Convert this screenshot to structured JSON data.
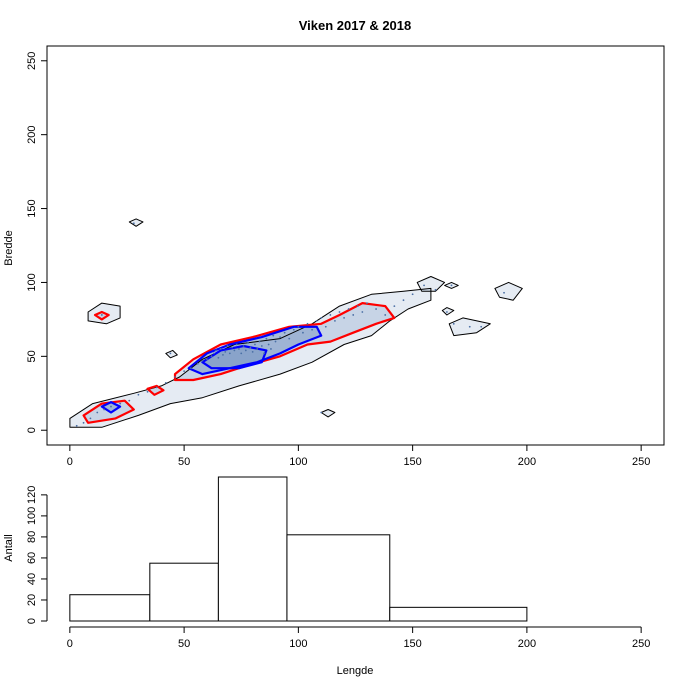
{
  "chart_data": [
    {
      "type": "scatter",
      "title": "Viken 2017 & 2018",
      "xlabel": "",
      "ylabel": "Bredde",
      "xlim": [
        -10,
        260
      ],
      "ylim": [
        -10,
        260
      ],
      "x_ticks": [
        "0",
        "50",
        "100",
        "150",
        "200",
        "250"
      ],
      "y_ticks": [
        "0",
        "50",
        "100",
        "150",
        "200",
        "250"
      ],
      "grid": false,
      "legend": "none",
      "colors": {
        "density_fill": "#6f8fbf",
        "contour_outer": "#000000",
        "contour_mid": "#ff0000",
        "contour_inner": "#0000ff",
        "points": "#4a6fa5"
      },
      "contours": [
        {
          "level": "outer",
          "color": "#000000",
          "polygons": [
            [
              [
                0,
                8
              ],
              [
                10,
                18
              ],
              [
                28,
                25
              ],
              [
                40,
                30
              ],
              [
                48,
                36
              ],
              [
                58,
                48
              ],
              [
                72,
                58
              ],
              [
                92,
                62
              ],
              [
                106,
                72
              ],
              [
                118,
                84
              ],
              [
                132,
                92
              ],
              [
                146,
                94
              ],
              [
                158,
                96
              ],
              [
                158,
                88
              ],
              [
                148,
                82
              ],
              [
                140,
                74
              ],
              [
                132,
                64
              ],
              [
                120,
                58
              ],
              [
                106,
                46
              ],
              [
                92,
                38
              ],
              [
                74,
                30
              ],
              [
                58,
                22
              ],
              [
                44,
                18
              ],
              [
                30,
                10
              ],
              [
                14,
                2
              ],
              [
                0,
                2
              ]
            ],
            [
              [
                8,
                80
              ],
              [
                14,
                86
              ],
              [
                22,
                84
              ],
              [
                22,
                76
              ],
              [
                16,
                72
              ],
              [
                8,
                74
              ]
            ],
            [
              [
                26,
                141
              ],
              [
                29,
                143
              ],
              [
                32,
                141
              ],
              [
                29,
                138
              ]
            ],
            [
              [
                42,
                52
              ],
              [
                45,
                54
              ],
              [
                47,
                51
              ],
              [
                44,
                49
              ]
            ],
            [
              [
                110,
                12
              ],
              [
                113,
                14
              ],
              [
                116,
                12
              ],
              [
                113,
                9
              ]
            ],
            [
              [
                152,
                100
              ],
              [
                158,
                104
              ],
              [
                164,
                100
              ],
              [
                160,
                94
              ],
              [
                154,
                94
              ]
            ],
            [
              [
                164,
                98
              ],
              [
                167,
                100
              ],
              [
                170,
                98
              ],
              [
                167,
                96
              ]
            ],
            [
              [
                163,
                81
              ],
              [
                165,
                83
              ],
              [
                168,
                81
              ],
              [
                165,
                78
              ]
            ],
            [
              [
                166,
                72
              ],
              [
                172,
                76
              ],
              [
                184,
                72
              ],
              [
                178,
                66
              ],
              [
                168,
                64
              ]
            ],
            [
              [
                186,
                96
              ],
              [
                192,
                100
              ],
              [
                198,
                96
              ],
              [
                194,
                88
              ],
              [
                188,
                90
              ]
            ]
          ]
        },
        {
          "level": "mid",
          "color": "#ff0000",
          "polygons": [
            [
              [
                6,
                10
              ],
              [
                14,
                18
              ],
              [
                24,
                20
              ],
              [
                28,
                14
              ],
              [
                20,
                8
              ],
              [
                8,
                5
              ]
            ],
            [
              [
                34,
                28
              ],
              [
                38,
                30
              ],
              [
                41,
                27
              ],
              [
                37,
                24
              ]
            ],
            [
              [
                11,
                78
              ],
              [
                14,
                80
              ],
              [
                17,
                78
              ],
              [
                14,
                75
              ]
            ],
            [
              [
                46,
                38
              ],
              [
                54,
                48
              ],
              [
                66,
                58
              ],
              [
                80,
                63
              ],
              [
                96,
                70
              ],
              [
                110,
                72
              ],
              [
                118,
                78
              ],
              [
                128,
                86
              ],
              [
                138,
                84
              ],
              [
                142,
                76
              ],
              [
                134,
                72
              ],
              [
                124,
                66
              ],
              [
                114,
                60
              ],
              [
                104,
                58
              ],
              [
                92,
                50
              ],
              [
                78,
                44
              ],
              [
                66,
                38
              ],
              [
                54,
                34
              ],
              [
                46,
                34
              ]
            ]
          ]
        },
        {
          "level": "inner",
          "color": "#0000ff",
          "polygons": [
            [
              [
                14,
                16
              ],
              [
                18,
                19
              ],
              [
                22,
                16
              ],
              [
                18,
                12
              ]
            ],
            [
              [
                52,
                42
              ],
              [
                60,
                52
              ],
              [
                70,
                58
              ],
              [
                84,
                63
              ],
              [
                98,
                70
              ],
              [
                108,
                70
              ],
              [
                110,
                64
              ],
              [
                100,
                58
              ],
              [
                92,
                52
              ],
              [
                82,
                46
              ],
              [
                70,
                42
              ],
              [
                58,
                38
              ]
            ],
            [
              [
                58,
                46
              ],
              [
                66,
                54
              ],
              [
                76,
                57
              ],
              [
                86,
                54
              ],
              [
                84,
                46
              ],
              [
                74,
                42
              ],
              [
                62,
                42
              ]
            ]
          ]
        }
      ],
      "points": [
        [
          3,
          3
        ],
        [
          6,
          5
        ],
        [
          9,
          8
        ],
        [
          12,
          12
        ],
        [
          15,
          14
        ],
        [
          18,
          16
        ],
        [
          22,
          18
        ],
        [
          26,
          20
        ],
        [
          30,
          24
        ],
        [
          34,
          26
        ],
        [
          38,
          29
        ],
        [
          42,
          32
        ],
        [
          46,
          36
        ],
        [
          50,
          40
        ],
        [
          53,
          42
        ],
        [
          56,
          45
        ],
        [
          58,
          47
        ],
        [
          60,
          48
        ],
        [
          62,
          50
        ],
        [
          63,
          52
        ],
        [
          64,
          54
        ],
        [
          65,
          49
        ],
        [
          66,
          55
        ],
        [
          67,
          51
        ],
        [
          68,
          53
        ],
        [
          69,
          57
        ],
        [
          70,
          52
        ],
        [
          71,
          56
        ],
        [
          72,
          54
        ],
        [
          73,
          58
        ],
        [
          74,
          55
        ],
        [
          75,
          52
        ],
        [
          76,
          57
        ],
        [
          77,
          54
        ],
        [
          78,
          59
        ],
        [
          79,
          56
        ],
        [
          80,
          53
        ],
        [
          81,
          58
        ],
        [
          82,
          55
        ],
        [
          83,
          60
        ],
        [
          84,
          57
        ],
        [
          85,
          52
        ],
        [
          86,
          62
        ],
        [
          87,
          58
        ],
        [
          88,
          55
        ],
        [
          89,
          64
        ],
        [
          90,
          60
        ],
        [
          92,
          63
        ],
        [
          94,
          66
        ],
        [
          96,
          62
        ],
        [
          98,
          68
        ],
        [
          100,
          70
        ],
        [
          102,
          66
        ],
        [
          104,
          72
        ],
        [
          106,
          68
        ],
        [
          108,
          74
        ],
        [
          110,
          76
        ],
        [
          112,
          70
        ],
        [
          114,
          78
        ],
        [
          116,
          74
        ],
        [
          118,
          80
        ],
        [
          120,
          76
        ],
        [
          122,
          82
        ],
        [
          124,
          78
        ],
        [
          126,
          84
        ],
        [
          128,
          80
        ],
        [
          130,
          86
        ],
        [
          134,
          82
        ],
        [
          138,
          78
        ],
        [
          142,
          84
        ],
        [
          146,
          88
        ],
        [
          150,
          92
        ],
        [
          155,
          98
        ],
        [
          160,
          95
        ],
        [
          168,
          72
        ],
        [
          175,
          70
        ],
        [
          180,
          70
        ],
        [
          190,
          93
        ],
        [
          110,
          12
        ],
        [
          28,
          140
        ],
        [
          14,
          78
        ],
        [
          44,
          52
        ],
        [
          165,
          80
        ],
        [
          167,
          98
        ]
      ]
    },
    {
      "type": "bar",
      "title": "",
      "xlabel": "Lengde",
      "ylabel": "Antall",
      "xlim": [
        -10,
        260
      ],
      "ylim": [
        0,
        140
      ],
      "x_ticks": [
        "0",
        "50",
        "100",
        "150",
        "200",
        "250"
      ],
      "y_ticks": [
        "0",
        "20",
        "40",
        "60",
        "80",
        "100",
        "120"
      ],
      "grid": false,
      "legend": "none",
      "bins": [
        {
          "from": 0,
          "to": 35,
          "count": 25
        },
        {
          "from": 35,
          "to": 65,
          "count": 55
        },
        {
          "from": 65,
          "to": 95,
          "count": 137
        },
        {
          "from": 95,
          "to": 140,
          "count": 82
        },
        {
          "from": 140,
          "to": 200,
          "count": 13
        }
      ]
    }
  ]
}
